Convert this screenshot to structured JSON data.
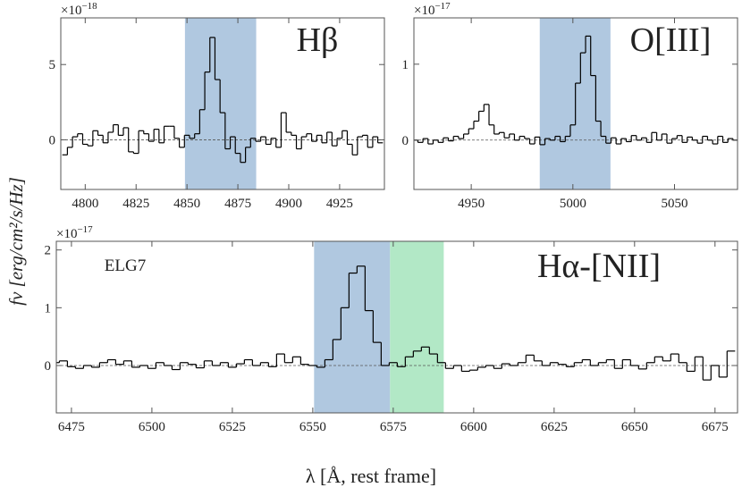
{
  "figure": {
    "xlabel": "λ [Å, rest frame]",
    "ylabel": "fν [erg/cm²/s/Hz]"
  },
  "chart_data": [
    {
      "type": "step",
      "annotation": "Hβ",
      "y_scale_label": {
        "base": "×10",
        "exponent": "−18"
      },
      "xlim": [
        4788,
        4947
      ],
      "ylim": [
        -3.3,
        8.1
      ],
      "xticks": [
        4800,
        4825,
        4850,
        4875,
        4900,
        4925
      ],
      "yticks": [
        0,
        5
      ],
      "hline": 0,
      "bands": [
        {
          "from": 4849,
          "to": 4884,
          "color": "#b0c8e0"
        }
      ],
      "x": [
        4790,
        4792.5,
        4795,
        4797.5,
        4800,
        4802.5,
        4805,
        4807.5,
        4810,
        4812.5,
        4815,
        4817.5,
        4820,
        4822.5,
        4825,
        4827.5,
        4830,
        4832.5,
        4835,
        4837.5,
        4840,
        4842.5,
        4845,
        4847.5,
        4850,
        4852.5,
        4855,
        4857.5,
        4860,
        4862.5,
        4865,
        4867.5,
        4870,
        4872.5,
        4875,
        4877.5,
        4880,
        4882.5,
        4885,
        4887.5,
        4890,
        4892.5,
        4895,
        4897.5,
        4900,
        4902.5,
        4905,
        4907.5,
        4910,
        4912.5,
        4915,
        4917.5,
        4920,
        4922.5,
        4925,
        4927.5,
        4930,
        4932.5,
        4935,
        4937.5,
        4940,
        4942.5,
        4945
      ],
      "series": [
        {
          "color": "#000000",
          "values": [
            -1,
            -0.5,
            0.2,
            0.4,
            -0.3,
            -0.4,
            0.6,
            0.3,
            -0.2,
            0.5,
            1.0,
            0.3,
            0.8,
            -0.8,
            -0.9,
            0.6,
            0.4,
            -0.1,
            0.7,
            -0.2,
            0.9,
            0.9,
            0.1,
            -0.5,
            0.3,
            0.1,
            0.4,
            2.0,
            4.5,
            6.8,
            4.0,
            1.8,
            -0.6,
            0.2,
            -0.9,
            -1.5,
            -0.5,
            0.1,
            -0.1,
            0.2,
            -0.3,
            0.1,
            -0.5,
            1.8,
            0.5,
            0.3,
            -0.6,
            0.2,
            0.4,
            -0.1,
            0.3,
            -0.2,
            0.5,
            -0.4,
            0.1,
            0.6,
            -0.3,
            -1.0,
            0.2,
            0.3,
            -0.5,
            0.2,
            -0.2
          ]
        }
      ]
    },
    {
      "type": "step",
      "annotation": "O[III]",
      "y_scale_label": {
        "base": "×10",
        "exponent": "−17"
      },
      "xlim": [
        4921.8,
        5081
      ],
      "ylim": [
        -0.65,
        1.61
      ],
      "xticks": [
        4950,
        5000,
        5050
      ],
      "yticks": [
        0,
        1
      ],
      "hline": 0,
      "bands": [
        {
          "from": 4983.7,
          "to": 5018.5,
          "color": "#b0c8e0"
        }
      ],
      "x": [
        4922.5,
        4925,
        4927.5,
        4930,
        4932.5,
        4935,
        4937.5,
        4940,
        4942.5,
        4945,
        4947.5,
        4950,
        4952.5,
        4955,
        4957.5,
        4960,
        4962.5,
        4965,
        4967.5,
        4970,
        4972.5,
        4975,
        4977.5,
        4980,
        4982.5,
        4985,
        4987.5,
        4990,
        4992.5,
        4995,
        4997.5,
        5000,
        5002.5,
        5005,
        5007.5,
        5010,
        5012.5,
        5015,
        5017.5,
        5020,
        5022.5,
        5025,
        5027.5,
        5030,
        5032.5,
        5035,
        5037.5,
        5040,
        5042.5,
        5045,
        5047.5,
        5050,
        5052.5,
        5055,
        5057.5,
        5060,
        5062.5,
        5065,
        5067.5,
        5070,
        5072.5,
        5075,
        5077.5,
        5080
      ],
      "series": [
        {
          "color": "#000000",
          "values": [
            0.0,
            -0.03,
            0.02,
            -0.05,
            0.0,
            -0.03,
            0.03,
            -0.01,
            0.05,
            0.02,
            0.08,
            0.15,
            0.25,
            0.38,
            0.47,
            0.2,
            0.08,
            0.1,
            0.03,
            0.08,
            0.0,
            0.05,
            0.02,
            -0.05,
            0.04,
            -0.06,
            0.02,
            0.0,
            0.05,
            -0.02,
            0.05,
            0.2,
            0.75,
            1.15,
            1.37,
            0.85,
            0.25,
            0.05,
            -0.04,
            0.03,
            -0.05,
            0.02,
            -0.02,
            0.06,
            0.0,
            0.03,
            -0.03,
            0.1,
            0.0,
            0.08,
            -0.04,
            0.02,
            0.06,
            -0.03,
            0.04,
            0.0,
            -0.04,
            0.05,
            0.0,
            -0.05,
            0.05,
            -0.03,
            0.02,
            0.0
          ]
        }
      ]
    },
    {
      "type": "step",
      "annotation": "Hα-[NII]",
      "label": "ELG7",
      "y_scale_label": {
        "base": "×10",
        "exponent": "−17"
      },
      "xlim": [
        6470.3,
        6682
      ],
      "ylim": [
        -0.82,
        2.15
      ],
      "xticks": [
        6475,
        6500,
        6525,
        6550,
        6575,
        6600,
        6625,
        6650,
        6675
      ],
      "yticks": [
        0,
        1,
        2
      ],
      "hline": 0,
      "bands": [
        {
          "from": 6550.4,
          "to": 6574,
          "color": "#b0c8e0"
        },
        {
          "from": 6574,
          "to": 6590.7,
          "color": "#b2e8c6"
        }
      ],
      "x": [
        6470,
        6472.5,
        6475,
        6477.5,
        6480,
        6482.5,
        6485,
        6487.5,
        6490,
        6492.5,
        6495,
        6497.5,
        6500,
        6502.5,
        6505,
        6507.5,
        6510,
        6512.5,
        6515,
        6517.5,
        6520,
        6522.5,
        6525,
        6527.5,
        6530,
        6532.5,
        6535,
        6537.5,
        6540,
        6542.5,
        6545,
        6547.5,
        6550,
        6552.5,
        6555,
        6557.5,
        6560,
        6562.5,
        6565,
        6567.5,
        6570,
        6572.5,
        6575,
        6577.5,
        6580,
        6582.5,
        6585,
        6587.5,
        6590,
        6592.5,
        6595,
        6597.5,
        6600,
        6602.5,
        6605,
        6607.5,
        6610,
        6612.5,
        6615,
        6617.5,
        6620,
        6622.5,
        6625,
        6627.5,
        6630,
        6632.5,
        6635,
        6637.5,
        6640,
        6642.5,
        6645,
        6647.5,
        6650,
        6652.5,
        6655,
        6657.5,
        6660,
        6662.5,
        6665,
        6667.5,
        6670,
        6672.5,
        6675,
        6677.5,
        6680
      ],
      "series": [
        {
          "color": "#000000",
          "values": [
            0.05,
            0.08,
            -0.02,
            -0.05,
            0.0,
            -0.03,
            0.05,
            0.1,
            0.02,
            0.08,
            -0.03,
            0.0,
            -0.05,
            0.05,
            0.0,
            -0.07,
            0.05,
            0.02,
            -0.04,
            0.08,
            0.0,
            0.05,
            -0.03,
            0.03,
            0.1,
            0.0,
            0.05,
            -0.02,
            0.2,
            0.05,
            0.15,
            0.02,
            0.0,
            -0.03,
            0.1,
            0.45,
            1.0,
            1.6,
            1.72,
            0.95,
            0.4,
            0.0,
            0.05,
            -0.02,
            0.15,
            0.25,
            0.32,
            0.2,
            0.05,
            -0.05,
            0.0,
            -0.1,
            -0.08,
            -0.03,
            0.0,
            -0.05,
            0.03,
            0.0,
            0.05,
            0.18,
            0.08,
            0.0,
            0.05,
            0.02,
            -0.02,
            0.05,
            0.1,
            0.0,
            0.05,
            0.1,
            -0.05,
            0.1,
            0.0,
            -0.06,
            0.05,
            0.15,
            0.08,
            0.2,
            0.05,
            -0.1,
            0.15,
            -0.25,
            0.0,
            -0.2,
            0.25
          ]
        }
      ]
    }
  ]
}
